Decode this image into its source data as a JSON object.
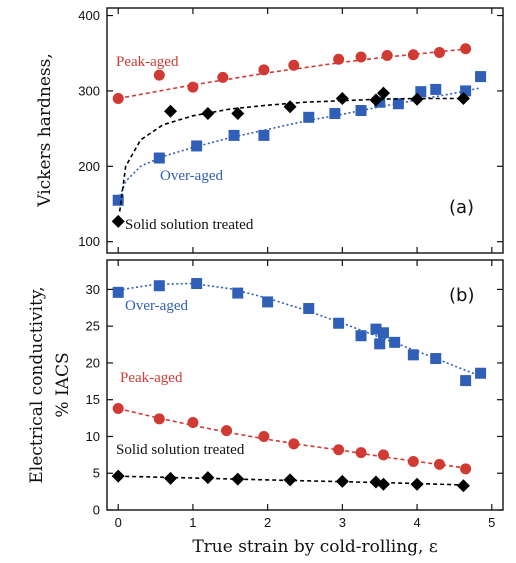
{
  "colors": {
    "peak": "#d13a32",
    "over": "#2f5fb7",
    "solution": "#000000",
    "axis": "#111111"
  },
  "xlabel": "True strain by cold-rolling, ε",
  "chart_data": [
    {
      "type": "scatter",
      "panel": "(a)",
      "ylabel": "Vickers hardness,",
      "xlim": [
        -0.15,
        5.15
      ],
      "ylim": [
        85,
        410
      ],
      "x_ticks": [
        0,
        1,
        2,
        3,
        4,
        5
      ],
      "y_ticks": [
        100,
        200,
        300,
        400
      ],
      "series": [
        {
          "name": "Peak-aged",
          "marker": "circle",
          "color_key": "peak",
          "points": [
            [
              0,
              290
            ],
            [
              0.55,
              321
            ],
            [
              1.0,
              305
            ],
            [
              1.4,
              318
            ],
            [
              1.95,
              328
            ],
            [
              2.35,
              334
            ],
            [
              2.95,
              342
            ],
            [
              3.25,
              345
            ],
            [
              3.6,
              347
            ],
            [
              3.95,
              348
            ],
            [
              4.3,
              351
            ],
            [
              4.65,
              356
            ]
          ],
          "fit": [
            [
              0,
              290
            ],
            [
              0.5,
              299
            ],
            [
              1.0,
              308
            ],
            [
              1.5,
              316
            ],
            [
              2.0,
              324
            ],
            [
              2.5,
              331
            ],
            [
              3.0,
              338
            ],
            [
              3.5,
              344
            ],
            [
              4.0,
              349
            ],
            [
              4.5,
              354
            ],
            [
              4.7,
              356
            ]
          ]
        },
        {
          "name": "Over-aged",
          "marker": "square",
          "color_key": "over",
          "points": [
            [
              0,
              155
            ],
            [
              0.55,
              211
            ],
            [
              1.05,
              227
            ],
            [
              1.55,
              241
            ],
            [
              1.95,
              241
            ],
            [
              2.55,
              265
            ],
            [
              2.9,
              270
            ],
            [
              3.25,
              274
            ],
            [
              3.5,
              285
            ],
            [
              3.75,
              283
            ],
            [
              4.05,
              299
            ],
            [
              4.25,
              302
            ],
            [
              4.65,
              300
            ],
            [
              4.85,
              319
            ]
          ],
          "fit": [
            [
              0,
              155
            ],
            [
              0.1,
              180
            ],
            [
              0.3,
              200
            ],
            [
              0.6,
              213
            ],
            [
              1.0,
              225
            ],
            [
              1.5,
              238
            ],
            [
              2.0,
              249
            ],
            [
              2.5,
              260
            ],
            [
              3.0,
              269
            ],
            [
              3.5,
              279
            ],
            [
              4.0,
              288
            ],
            [
              4.5,
              297
            ],
            [
              4.85,
              304
            ]
          ]
        },
        {
          "name": "Solid solution treated",
          "marker": "diamond",
          "color_key": "solution",
          "points": [
            [
              0,
              127
            ],
            [
              0.7,
              273
            ],
            [
              1.2,
              270
            ],
            [
              1.6,
              270
            ],
            [
              2.3,
              279
            ],
            [
              3.0,
              290
            ],
            [
              3.55,
              297
            ],
            [
              3.45,
              288
            ],
            [
              4.0,
              289
            ],
            [
              4.62,
              290
            ]
          ],
          "fit": [
            [
              0.02,
              140
            ],
            [
              0.1,
              200
            ],
            [
              0.3,
              235
            ],
            [
              0.6,
              255
            ],
            [
              1.0,
              267
            ],
            [
              1.5,
              276
            ],
            [
              2.0,
              281
            ],
            [
              2.5,
              285
            ],
            [
              3.0,
              287
            ],
            [
              3.5,
              289
            ],
            [
              4.0,
              290
            ],
            [
              4.6,
              290
            ]
          ]
        }
      ],
      "labels": {
        "peak": "Peak-aged",
        "over": "Over-aged",
        "solution": "Solid solution treated",
        "panel": "(a)"
      }
    },
    {
      "type": "scatter",
      "panel": "(b)",
      "ylabel": [
        "Electrical conductivity,",
        "% IACS"
      ],
      "xlim": [
        -0.15,
        5.15
      ],
      "ylim": [
        0,
        34
      ],
      "x_ticks": [
        0,
        1,
        2,
        3,
        4,
        5
      ],
      "x_tick_labels": [
        "0",
        "1",
        "2",
        "3",
        "4",
        "5"
      ],
      "y_ticks": [
        0,
        5,
        10,
        15,
        20,
        25,
        30
      ],
      "series": [
        {
          "name": "Over-aged",
          "marker": "square",
          "color_key": "over",
          "points": [
            [
              0,
              29.6
            ],
            [
              0.55,
              30.5
            ],
            [
              1.05,
              30.8
            ],
            [
              1.6,
              29.5
            ],
            [
              2.0,
              28.3
            ],
            [
              2.55,
              27.4
            ],
            [
              2.95,
              25.4
            ],
            [
              3.25,
              23.7
            ],
            [
              3.45,
              24.6
            ],
            [
              3.5,
              22.6
            ],
            [
              3.55,
              24.1
            ],
            [
              3.7,
              22.8
            ],
            [
              3.95,
              21.1
            ],
            [
              4.25,
              20.6
            ],
            [
              4.65,
              17.6
            ],
            [
              4.85,
              18.6
            ]
          ],
          "fit": [
            [
              0,
              29.9
            ],
            [
              0.5,
              30.7
            ],
            [
              1.0,
              30.8
            ],
            [
              1.5,
              30.1
            ],
            [
              2.0,
              28.8
            ],
            [
              2.5,
              27.2
            ],
            [
              3.0,
              25.4
            ],
            [
              3.5,
              23.5
            ],
            [
              4.0,
              21.6
            ],
            [
              4.5,
              19.6
            ],
            [
              4.85,
              18.2
            ]
          ]
        },
        {
          "name": "Peak-aged",
          "marker": "circle",
          "color_key": "peak",
          "points": [
            [
              0,
              13.8
            ],
            [
              0.55,
              12.4
            ],
            [
              1.0,
              11.9
            ],
            [
              1.45,
              10.8
            ],
            [
              1.95,
              10.0
            ],
            [
              2.35,
              9.0
            ],
            [
              2.95,
              8.2
            ],
            [
              3.25,
              7.8
            ],
            [
              3.55,
              7.5
            ],
            [
              3.95,
              6.6
            ],
            [
              4.3,
              6.2
            ],
            [
              4.65,
              5.6
            ]
          ],
          "fit": [
            [
              0,
              13.8
            ],
            [
              0.5,
              12.6
            ],
            [
              1.0,
              11.5
            ],
            [
              1.5,
              10.5
            ],
            [
              2.0,
              9.6
            ],
            [
              2.5,
              8.8
            ],
            [
              3.0,
              8.1
            ],
            [
              3.5,
              7.3
            ],
            [
              4.0,
              6.6
            ],
            [
              4.65,
              5.7
            ]
          ]
        },
        {
          "name": "Solid solution treated",
          "marker": "diamond",
          "color_key": "solution",
          "points": [
            [
              0,
              4.6
            ],
            [
              0.7,
              4.3
            ],
            [
              1.2,
              4.4
            ],
            [
              1.6,
              4.2
            ],
            [
              2.3,
              4.1
            ],
            [
              3.0,
              3.9
            ],
            [
              3.45,
              3.8
            ],
            [
              3.55,
              3.5
            ],
            [
              4.0,
              3.5
            ],
            [
              4.62,
              3.3
            ]
          ],
          "fit": [
            [
              0,
              4.6
            ],
            [
              1.0,
              4.35
            ],
            [
              2.0,
              4.1
            ],
            [
              3.0,
              3.85
            ],
            [
              4.0,
              3.6
            ],
            [
              4.62,
              3.4
            ]
          ]
        }
      ],
      "labels": {
        "over": "Over-aged",
        "peak": "Peak-aged",
        "solution": "Solid solution treated",
        "panel": "(b)"
      }
    }
  ]
}
